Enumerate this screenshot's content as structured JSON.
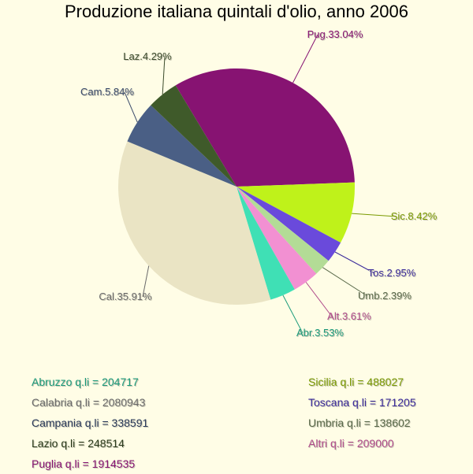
{
  "chart_data": {
    "type": "pie",
    "title": "Produzione italiana quintali d'olio, anno 2006",
    "slices": [
      {
        "label": "Pug.33.04%",
        "value": 33.04,
        "color": "#871372",
        "label_color": "#871372"
      },
      {
        "label": "Sic.8.42%",
        "value": 8.42,
        "color": "#bff21a",
        "label_color": "#7a9a00"
      },
      {
        "label": "Tos.2.95%",
        "value": 2.95,
        "color": "#6a4adb",
        "label_color": "#3a2a9a"
      },
      {
        "label": "Umb.2.39%",
        "value": 2.39,
        "color": "#b3dc96",
        "label_color": "#5a6a4a"
      },
      {
        "label": "Alt.3.61%",
        "value": 3.61,
        "color": "#f290d2",
        "label_color": "#b04a8a"
      },
      {
        "label": "Abr.3.53%",
        "value": 3.53,
        "color": "#3fe0b5",
        "label_color": "#1a9a7a"
      },
      {
        "label": "Cal.35.91%",
        "value": 35.91,
        "color": "#eae4c4",
        "label_color": "#6a6a6a"
      },
      {
        "label": "Cam.5.84%",
        "value": 5.84,
        "color": "#4a5f85",
        "label_color": "#3a4a6a"
      },
      {
        "label": "Laz.4.29%",
        "value": 4.29,
        "color": "#3f5a2a",
        "label_color": "#3a4a2a"
      }
    ]
  },
  "legend": {
    "left": [
      {
        "text": "Abruzzo q.li = 204717",
        "color": "#1a9a7a"
      },
      {
        "text": "Calabria q.li = 2080943",
        "color": "#6a6a6a"
      },
      {
        "text": "Campania q.li = 338591",
        "color": "#2a3a5a"
      },
      {
        "text": "Lazio q.li = 248514",
        "color": "#2a3a1a"
      },
      {
        "text": "Puglia q.li = 1914535",
        "color": "#871372"
      }
    ],
    "right": [
      {
        "text": "Sicilia q.li = 488027",
        "color": "#7a9a00"
      },
      {
        "text": "Toscana q.li = 171205",
        "color": "#3a2a9a"
      },
      {
        "text": "Umbria q.li = 138602",
        "color": "#5a6a4a"
      },
      {
        "text": "Altri q.li = 209000",
        "color": "#b04a8a"
      }
    ]
  }
}
